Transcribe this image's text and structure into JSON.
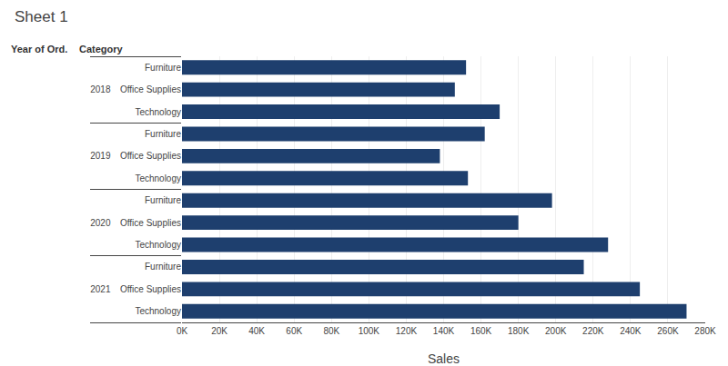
{
  "chart_data": {
    "type": "bar",
    "orientation": "horizontal",
    "title": "Sheet 1",
    "xlabel": "Sales",
    "annotations": [
      {
        "text": "Year of Ord."
      },
      {
        "text": "Category"
      }
    ],
    "categories": [
      [
        "2018",
        "Furniture"
      ],
      [
        "2018",
        "Office Supplies"
      ],
      [
        "2018",
        "Technology"
      ],
      [
        "2019",
        "Furniture"
      ],
      [
        "2019",
        "Office Supplies"
      ],
      [
        "2019",
        "Technology"
      ],
      [
        "2020",
        "Furniture"
      ],
      [
        "2020",
        "Office Supplies"
      ],
      [
        "2020",
        "Technology"
      ],
      [
        "2021",
        "Furniture"
      ],
      [
        "2021",
        "Office Supplies"
      ],
      [
        "2021",
        "Technology"
      ]
    ],
    "values": [
      152000,
      146000,
      170000,
      162000,
      138000,
      153000,
      198000,
      180000,
      228000,
      215000,
      245000,
      270000
    ],
    "color": "#1e3f6e",
    "xlim": [
      0,
      280000
    ],
    "xticks": [
      {
        "value": 0,
        "label": "0K"
      },
      {
        "value": 20000,
        "label": "20K"
      },
      {
        "value": 40000,
        "label": "40K"
      },
      {
        "value": 60000,
        "label": "60K"
      },
      {
        "value": 80000,
        "label": "80K"
      },
      {
        "value": 100000,
        "label": "100K"
      },
      {
        "value": 120000,
        "label": "120K"
      },
      {
        "value": 140000,
        "label": "140K"
      },
      {
        "value": 160000,
        "label": "160K"
      },
      {
        "value": 180000,
        "label": "180K"
      },
      {
        "value": 200000,
        "label": "200K"
      },
      {
        "value": 220000,
        "label": "220K"
      },
      {
        "value": 240000,
        "label": "240K"
      },
      {
        "value": 260000,
        "label": "260K"
      },
      {
        "value": 280000,
        "label": "280K"
      }
    ],
    "grid": true
  }
}
